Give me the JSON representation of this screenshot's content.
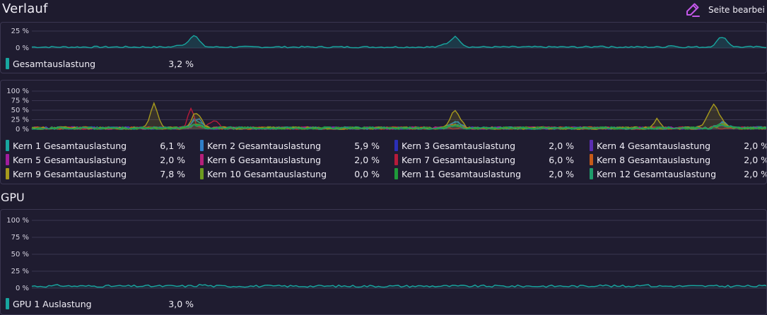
{
  "header": {
    "title": "Verlauf",
    "edit_label": "Seite bearbei"
  },
  "colors": {
    "teal": "#18a6a0",
    "blue": "#2f7fc9",
    "navy": "#2a2fb8",
    "purple": "#5a2db2",
    "magenta": "#a11d9e",
    "pink": "#b5207a",
    "crimson": "#b51b3a",
    "orange": "#c65a19",
    "olive": "#a79a1d",
    "green": "#6d9b1f",
    "green2": "#1f9b3a",
    "emerald": "#1e9c6b",
    "edit_icon": "#c257e8"
  },
  "cpu_total": {
    "ticks": [
      "25 %",
      "0 %"
    ],
    "legend": [
      {
        "name": "Gesamtauslastung",
        "value": "3,2 %",
        "color": "#18a6a0"
      }
    ]
  },
  "cpu_cores": {
    "ticks": [
      "100 %",
      "75 %",
      "50 %",
      "25 %",
      "0 %"
    ],
    "legend": [
      {
        "name": "Kern 1 Gesamtauslastung",
        "value": "6,1 %",
        "color": "#18a6a0"
      },
      {
        "name": "Kern 2 Gesamtauslastung",
        "value": "5,9 %",
        "color": "#2f7fc9"
      },
      {
        "name": "Kern 3 Gesamtauslastung",
        "value": "2,0 %",
        "color": "#2a2fb8"
      },
      {
        "name": "Kern 4 Gesamtauslastung",
        "value": "2,0 %",
        "color": "#5a2db2"
      },
      {
        "name": "Kern 5 Gesamtauslastung",
        "value": "2,0 %",
        "color": "#a11d9e"
      },
      {
        "name": "Kern 6 Gesamtauslastung",
        "value": "2,0 %",
        "color": "#b5207a"
      },
      {
        "name": "Kern 7 Gesamtauslastung",
        "value": "6,0 %",
        "color": "#b51b3a"
      },
      {
        "name": "Kern 8 Gesamtauslastung",
        "value": "2,0 %",
        "color": "#c65a19"
      },
      {
        "name": "Kern 9 Gesamtauslastung",
        "value": "7,8 %",
        "color": "#a79a1d"
      },
      {
        "name": "Kern 10 Gesamtauslastung",
        "value": "0,0 %",
        "color": "#6d9b1f"
      },
      {
        "name": "Kern 11 Gesamtauslastung",
        "value": "2,0 %",
        "color": "#1f9b3a"
      },
      {
        "name": "Kern 12 Gesamtauslastung",
        "value": "2,0 %",
        "color": "#1e9c6b"
      }
    ]
  },
  "gpu": {
    "title": "GPU",
    "ticks": [
      "100 %",
      "75 %",
      "50 %",
      "25 %",
      "0 %"
    ],
    "legend": [
      {
        "name": "GPU 1 Auslastung",
        "value": "3,0 %",
        "color": "#18a6a0"
      }
    ]
  }
}
